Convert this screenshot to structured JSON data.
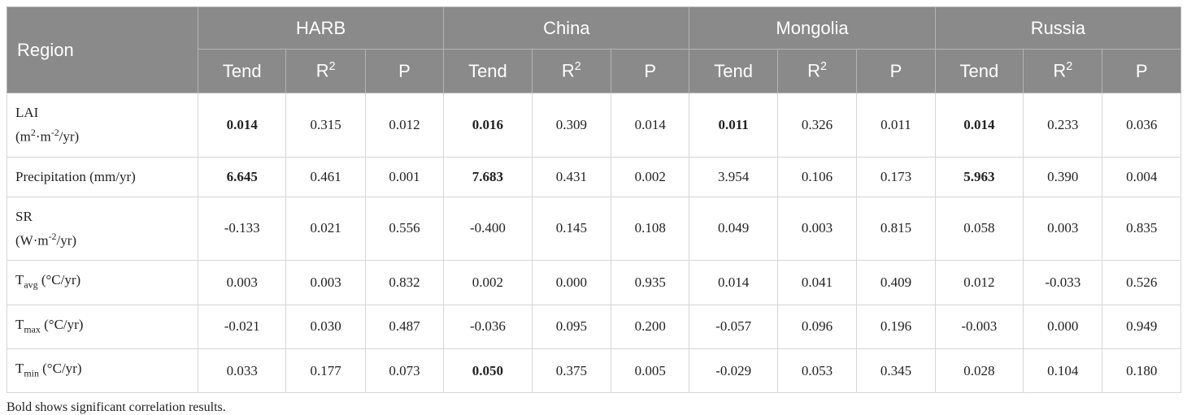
{
  "table": {
    "header": {
      "region": "Region",
      "groups": [
        "HARB",
        "China",
        "Mongolia",
        "Russia"
      ],
      "columns": [
        [
          {
            "t": "Tend"
          }
        ],
        [
          {
            "t": "R"
          },
          {
            "t": "2",
            "s": "sup"
          }
        ],
        [
          {
            "t": "P"
          }
        ]
      ]
    },
    "rows": [
      {
        "label": [
          [
            {
              "t": "LAI"
            }
          ],
          [
            {
              "t": "(m"
            },
            {
              "t": "2",
              "s": "sup"
            },
            {
              "t": "·m"
            },
            {
              "t": "-2",
              "s": "sup"
            },
            {
              "t": "/yr)"
            }
          ]
        ],
        "values": [
          "0.014",
          "0.315",
          "0.012",
          "0.016",
          "0.309",
          "0.014",
          "0.011",
          "0.326",
          "0.011",
          "0.014",
          "0.233",
          "0.036"
        ],
        "bold": [
          0,
          3,
          6,
          9
        ]
      },
      {
        "label": [
          [
            {
              "t": "Precipitation (mm/yr)"
            }
          ]
        ],
        "values": [
          "6.645",
          "0.461",
          "0.001",
          "7.683",
          "0.431",
          "0.002",
          "3.954",
          "0.106",
          "0.173",
          "5.963",
          "0.390",
          "0.004"
        ],
        "bold": [
          0,
          3,
          9
        ]
      },
      {
        "label": [
          [
            {
              "t": "SR"
            }
          ],
          [
            {
              "t": "(W·m"
            },
            {
              "t": "-2",
              "s": "sup"
            },
            {
              "t": "/yr)"
            }
          ]
        ],
        "values": [
          "-0.133",
          "0.021",
          "0.556",
          "-0.400",
          "0.145",
          "0.108",
          "0.049",
          "0.003",
          "0.815",
          "0.058",
          "0.003",
          "0.835"
        ]
      },
      {
        "label": [
          [
            {
              "t": "T"
            },
            {
              "t": "avg",
              "s": "sub"
            },
            {
              "t": " (°C/yr)"
            }
          ]
        ],
        "values": [
          "0.003",
          "0.003",
          "0.832",
          "0.002",
          "0.000",
          "0.935",
          "0.014",
          "0.041",
          "0.409",
          "0.012",
          "-0.033",
          "0.526"
        ]
      },
      {
        "label": [
          [
            {
              "t": "T"
            },
            {
              "t": "max",
              "s": "sub"
            },
            {
              "t": " (°C/yr)"
            }
          ]
        ],
        "values": [
          "-0.021",
          "0.030",
          "0.487",
          "-0.036",
          "0.095",
          "0.200",
          "-0.057",
          "0.096",
          "0.196",
          "-0.003",
          "0.000",
          "0.949"
        ]
      },
      {
        "label": [
          [
            {
              "t": "T"
            },
            {
              "t": "min",
              "s": "sub"
            },
            {
              "t": " (°C/yr)"
            }
          ]
        ],
        "values": [
          "0.033",
          "0.177",
          "0.073",
          "0.050",
          "0.375",
          "0.005",
          "-0.029",
          "0.053",
          "0.345",
          "0.028",
          "0.104",
          "0.180"
        ],
        "bold": [
          3
        ]
      }
    ],
    "footnote": "Bold shows significant correlation results."
  }
}
